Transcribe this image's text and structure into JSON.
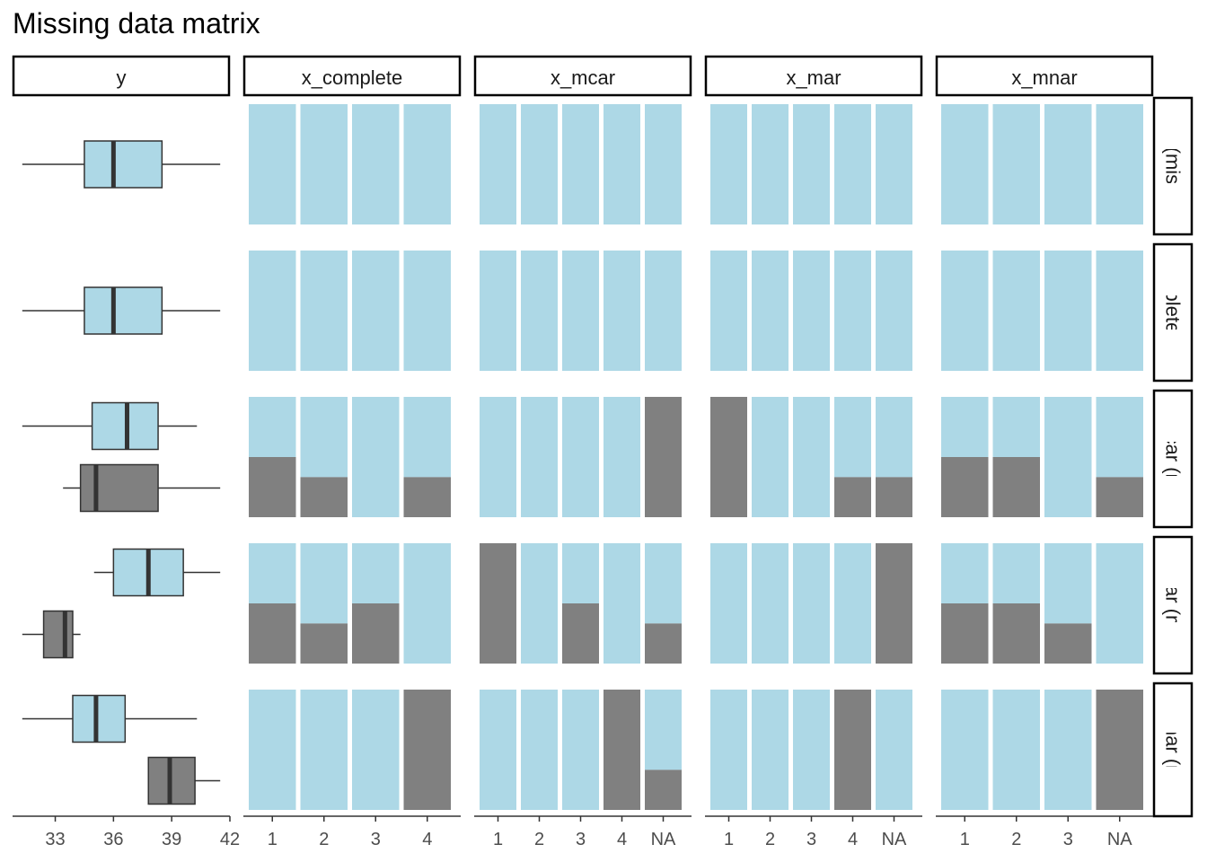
{
  "chart_data": {
    "type": "bar",
    "title": "Missing data matrix",
    "column_strips": [
      "y",
      "x_complete",
      "x_mcar",
      "x_mar",
      "x_mnar"
    ],
    "row_strips": [
      "y (miss)",
      "x_complete (miss)",
      "x_mcar (miss)",
      "x_mar (miss)",
      "x_mnar (miss)"
    ],
    "colors": {
      "observed": "#ADD8E6",
      "missing": "#808080",
      "outline": "#333333"
    },
    "y_axis": {
      "ticks": [
        33,
        36,
        39,
        42
      ],
      "range": [
        30.8,
        42
      ]
    },
    "x_categories": [
      [
        "1",
        "2",
        "3",
        "4"
      ],
      [
        "1",
        "2",
        "3",
        "4",
        "NA"
      ],
      [
        "1",
        "2",
        "3",
        "4",
        "NA"
      ],
      [
        "1",
        "2",
        "3",
        "NA"
      ]
    ],
    "boxplots": [
      [
        {
          "group": "observed",
          "min": 31.3,
          "q1": 34.5,
          "median": 36.0,
          "q3": 38.5,
          "max": 41.5
        }
      ],
      [
        {
          "group": "observed",
          "min": 31.3,
          "q1": 34.5,
          "median": 36.0,
          "q3": 38.5,
          "max": 41.5
        }
      ],
      [
        {
          "group": "observed",
          "min": 31.3,
          "q1": 34.9,
          "median": 36.7,
          "q3": 38.3,
          "max": 40.3
        },
        {
          "group": "missing",
          "min": 33.4,
          "q1": 34.3,
          "median": 35.1,
          "q3": 38.3,
          "max": 41.5
        }
      ],
      [
        {
          "group": "observed",
          "min": 35.0,
          "q1": 36.0,
          "median": 37.8,
          "q3": 39.6,
          "max": 41.5
        },
        {
          "group": "missing",
          "min": 31.3,
          "q1": 32.4,
          "median": 33.5,
          "q3": 33.9,
          "max": 34.3
        }
      ],
      [
        {
          "group": "observed",
          "min": 31.3,
          "q1": 33.9,
          "median": 35.1,
          "q3": 36.6,
          "max": 40.3
        },
        {
          "group": "missing",
          "min": 37.8,
          "q1": 37.8,
          "median": 38.9,
          "q3": 40.2,
          "max": 41.5
        }
      ]
    ],
    "missing_fraction": [
      [
        [
          0,
          0,
          0,
          0
        ],
        [
          0,
          0,
          0,
          0,
          0
        ],
        [
          0,
          0,
          0,
          0,
          0
        ],
        [
          0,
          0,
          0,
          0
        ]
      ],
      [
        [
          0,
          0,
          0,
          0
        ],
        [
          0,
          0,
          0,
          0,
          0
        ],
        [
          0,
          0,
          0,
          0,
          0
        ],
        [
          0,
          0,
          0,
          0
        ]
      ],
      [
        [
          0.5,
          0.333,
          0,
          0.333
        ],
        [
          0,
          0,
          0,
          0,
          1
        ],
        [
          1,
          0,
          0,
          0.333,
          0.333
        ],
        [
          0.5,
          0.5,
          0,
          0.333
        ]
      ],
      [
        [
          0.5,
          0.333,
          0.5,
          0
        ],
        [
          1,
          0,
          0.5,
          0,
          0.333
        ],
        [
          0,
          0,
          0,
          0,
          1
        ],
        [
          0.5,
          0.5,
          0.333,
          0
        ]
      ],
      [
        [
          0,
          0,
          0,
          1
        ],
        [
          0,
          0,
          0,
          1,
          0.333
        ],
        [
          0,
          0,
          0,
          1,
          0
        ],
        [
          0,
          0,
          0,
          1
        ]
      ]
    ]
  }
}
